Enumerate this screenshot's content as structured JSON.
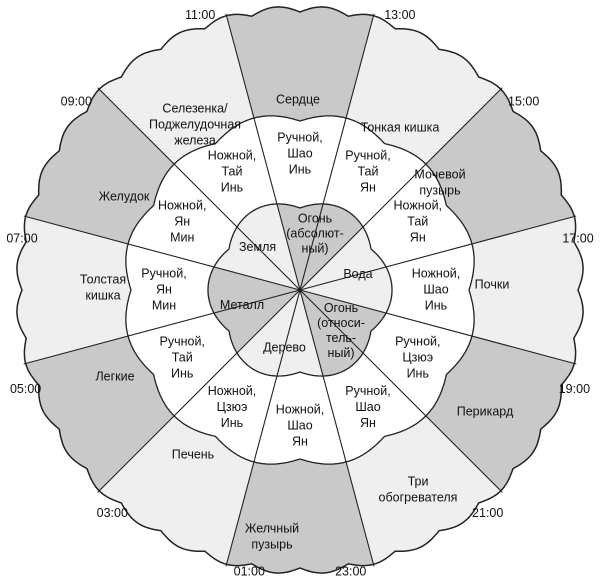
{
  "sectors": [
    {
      "organ": [
        "Сердце"
      ],
      "meridian": [
        "Ручной,",
        "Шао",
        "Инь"
      ]
    },
    {
      "organ": [
        "Тонкая кишка"
      ],
      "meridian": [
        "Ручной,",
        "Тай",
        "Ян"
      ]
    },
    {
      "organ": [
        "Мочевой",
        "пузырь"
      ],
      "meridian": [
        "Ножной,",
        "Тай",
        "Ян"
      ]
    },
    {
      "organ": [
        "Почки"
      ],
      "meridian": [
        "Ножной,",
        "Шао",
        "Инь"
      ]
    },
    {
      "organ": [
        "Перикард"
      ],
      "meridian": [
        "Ручной,",
        "Цзюэ",
        "Инь"
      ]
    },
    {
      "organ": [
        "Три",
        "обогревателя"
      ],
      "meridian": [
        "Ручной,",
        "Шао",
        "Ян"
      ]
    },
    {
      "organ": [
        "Желчный",
        "пузырь"
      ],
      "meridian": [
        "Ножной,",
        "Шао",
        "Ян"
      ]
    },
    {
      "organ": [
        "Печень"
      ],
      "meridian": [
        "Ножной,",
        "Цзюэ",
        "Инь"
      ]
    },
    {
      "organ": [
        "Легкие"
      ],
      "meridian": [
        "Ручной,",
        "Тай",
        "Инь"
      ]
    },
    {
      "organ": [
        "Толстая",
        "кишка"
      ],
      "meridian": [
        "Ручной,",
        "Ян",
        "Мин"
      ]
    },
    {
      "organ": [
        "Желудок"
      ],
      "meridian": [
        "Ножной,",
        "Ян",
        "Мин"
      ]
    },
    {
      "organ": [
        "Селезенка/",
        "Поджелудочная",
        "железа"
      ],
      "meridian": [
        "Ножной,",
        "Тай",
        "Инь"
      ]
    }
  ],
  "times": [
    "13:00",
    "15:00",
    "17:00",
    "19:00",
    "21:00",
    "23:00",
    "01:00",
    "03:00",
    "05:00",
    "07:00",
    "09:00",
    "11:00"
  ],
  "elements": [
    [
      "Огонь",
      "(абсолют-",
      "ный)"
    ],
    [
      "Вода"
    ],
    [
      "Огонь",
      "(относи-",
      "тель-",
      "ный)"
    ],
    [
      "Дерево"
    ],
    [
      "Металл"
    ],
    [
      "Земля"
    ]
  ]
}
